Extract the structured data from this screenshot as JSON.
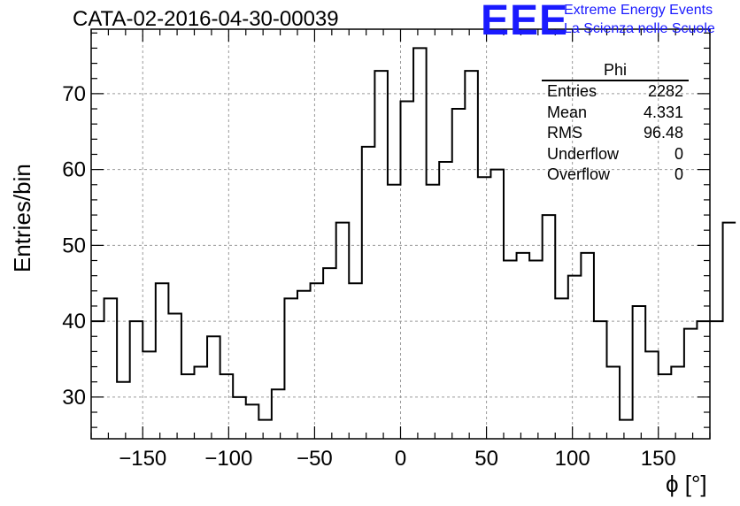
{
  "title": "CATA-02-2016-04-30-00039",
  "logo": {
    "mark": "EEE",
    "line1": "Extreme Energy Events",
    "line2": "La Scienza nelle Scuole",
    "color": "#1a1aff"
  },
  "stats_box": {
    "title": "Phi",
    "rows": [
      {
        "label": "Entries",
        "value": "2282"
      },
      {
        "label": "Mean",
        "value": "4.331"
      },
      {
        "label": "RMS",
        "value": "96.48"
      },
      {
        "label": "Underflow",
        "value": "0"
      },
      {
        "label": "Overflow",
        "value": "0"
      }
    ]
  },
  "chart_data": {
    "type": "histogram",
    "title": "CATA-02-2016-04-30-00039",
    "xlabel": "ϕ [°]",
    "ylabel": "Entries/bin",
    "xlim": [
      -180,
      180
    ],
    "ylim": [
      24.5,
      78.5
    ],
    "bin_edges_start": -180,
    "bin_width": 7.5,
    "values": [
      40,
      43,
      32,
      40,
      36,
      45,
      41,
      33,
      34,
      38,
      33,
      30,
      29,
      27,
      31,
      43,
      44,
      45,
      47,
      53,
      45,
      63,
      73,
      58,
      69,
      76,
      58,
      61,
      68,
      73,
      59,
      60,
      48,
      49,
      48,
      54,
      43,
      46,
      49,
      40,
      34,
      27,
      42,
      36,
      33,
      34,
      39,
      40,
      40,
      53
    ],
    "xticks": [
      -150,
      -100,
      -50,
      0,
      50,
      100,
      150
    ],
    "xtick_labels": [
      "−150",
      "−100",
      "−50",
      "0",
      "50",
      "100",
      "150"
    ],
    "yticks": [
      30,
      40,
      50,
      60,
      70
    ],
    "ytick_labels": [
      "30",
      "40",
      "50",
      "60",
      "70"
    ],
    "grid": true,
    "line_color": "#000000"
  }
}
